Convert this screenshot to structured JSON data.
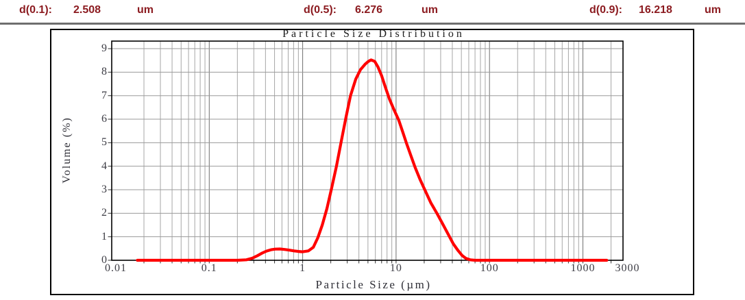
{
  "header": {
    "items": [
      {
        "label": "d(0.1):",
        "value": "2.508",
        "unit": "um"
      },
      {
        "label": "d(0.5):",
        "value": "6.276",
        "unit": "um"
      },
      {
        "label": "d(0.9):",
        "value": "16.218",
        "unit": "um"
      }
    ]
  },
  "chart_data": {
    "type": "line",
    "title": "Particle Size Distribution",
    "xlabel": "Particle Size (µm)",
    "ylabel": "Volume (%)",
    "x_scale": "log",
    "xlim": [
      0.01,
      2700
    ],
    "ylim": [
      0,
      9.3
    ],
    "grid": true,
    "legend": false,
    "x_ticks": [
      {
        "value": 0.01,
        "label": "0.01"
      },
      {
        "value": 0.1,
        "label": "0.1"
      },
      {
        "value": 1,
        "label": "1"
      },
      {
        "value": 10,
        "label": "10"
      },
      {
        "value": 100,
        "label": "100"
      },
      {
        "value": 1000,
        "label": "1000"
      },
      {
        "value": 3000,
        "label": "3000"
      }
    ],
    "y_ticks": [
      0,
      1,
      2,
      3,
      4,
      5,
      6,
      7,
      8,
      9
    ],
    "series": [
      {
        "name": "Volume (%)",
        "color": "#ff0000",
        "points": [
          [
            0.017,
            0
          ],
          [
            0.03,
            0
          ],
          [
            0.06,
            0
          ],
          [
            0.1,
            0
          ],
          [
            0.15,
            0
          ],
          [
            0.2,
            0
          ],
          [
            0.25,
            0.02
          ],
          [
            0.29,
            0.09
          ],
          [
            0.33,
            0.2
          ],
          [
            0.37,
            0.31
          ],
          [
            0.41,
            0.39
          ],
          [
            0.46,
            0.45
          ],
          [
            0.51,
            0.475
          ],
          [
            0.57,
            0.48
          ],
          [
            0.64,
            0.46
          ],
          [
            0.72,
            0.43
          ],
          [
            0.81,
            0.4
          ],
          [
            0.9,
            0.375
          ],
          [
            1.0,
            0.36
          ],
          [
            1.15,
            0.4
          ],
          [
            1.3,
            0.55
          ],
          [
            1.45,
            0.95
          ],
          [
            1.62,
            1.5
          ],
          [
            1.82,
            2.2
          ],
          [
            2.05,
            3.1
          ],
          [
            2.3,
            4.0
          ],
          [
            2.6,
            5.1
          ],
          [
            2.9,
            6.05
          ],
          [
            3.25,
            7.0
          ],
          [
            3.7,
            7.7
          ],
          [
            4.15,
            8.1
          ],
          [
            4.7,
            8.35
          ],
          [
            5.05,
            8.46
          ],
          [
            5.4,
            8.52
          ],
          [
            5.9,
            8.46
          ],
          [
            6.4,
            8.22
          ],
          [
            7.0,
            7.85
          ],
          [
            7.7,
            7.35
          ],
          [
            8.5,
            6.85
          ],
          [
            9.5,
            6.4
          ],
          [
            10.7,
            5.95
          ],
          [
            11.8,
            5.45
          ],
          [
            13.0,
            4.95
          ],
          [
            14.4,
            4.45
          ],
          [
            16.0,
            3.95
          ],
          [
            18.0,
            3.45
          ],
          [
            20.4,
            2.98
          ],
          [
            23.5,
            2.45
          ],
          [
            27.5,
            1.98
          ],
          [
            31.5,
            1.55
          ],
          [
            36.8,
            1.05
          ],
          [
            41.0,
            0.7
          ],
          [
            46.0,
            0.42
          ],
          [
            51.0,
            0.2
          ],
          [
            56.0,
            0.08
          ],
          [
            62.0,
            0.02
          ],
          [
            70.0,
            0
          ],
          [
            90,
            0
          ],
          [
            150,
            0
          ],
          [
            400,
            0
          ],
          [
            1000,
            0
          ],
          [
            1800,
            0
          ]
        ]
      }
    ]
  },
  "colors": {
    "header_text": "#8b1a1f",
    "curve": "#ff0000",
    "grid_minor": "#a6a6a6",
    "grid_major": "#6e6e6e",
    "axis": "#000000",
    "tick_text": "#3c3c44",
    "rule": "#6e6e6e"
  }
}
